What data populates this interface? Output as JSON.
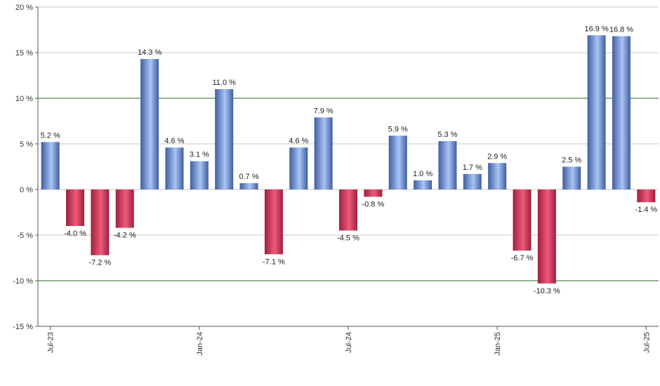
{
  "chart_data": {
    "type": "bar",
    "title": "",
    "xlabel": "",
    "ylabel": "",
    "ylim": [
      -15,
      20
    ],
    "y_ticks": [
      20,
      15,
      10,
      5,
      0,
      -5,
      -10,
      -15
    ],
    "y_tick_suffix": " %",
    "highlight_lines": [
      10,
      -10
    ],
    "grid": true,
    "x_tick_labels": [
      {
        "label": "Jul-23",
        "index": 0
      },
      {
        "label": "Jan-24",
        "index": 6
      },
      {
        "label": "Jul-24",
        "index": 12
      },
      {
        "label": "Jan-25",
        "index": 18
      },
      {
        "label": "Jul-25",
        "index": 24
      }
    ],
    "values": [
      5.2,
      -4.0,
      -7.2,
      -4.2,
      14.3,
      4.6,
      3.1,
      11.0,
      0.7,
      -7.1,
      4.6,
      7.9,
      -4.5,
      -0.8,
      5.9,
      1.0,
      5.3,
      1.7,
      2.9,
      -6.7,
      -10.3,
      2.5,
      16.9,
      16.8,
      -1.4
    ],
    "value_labels": [
      "5.2 %",
      "-4.0 %",
      "-7.2 %",
      "-4.2 %",
      "14.3 %",
      "4.6 %",
      "3.1 %",
      "11.0 %",
      "0.7 %",
      "-7.1 %",
      "4.6 %",
      "7.9 %",
      "-4.5 %",
      "-0.8 %",
      "5.9 %",
      "1.0 %",
      "5.3 %",
      "1.7 %",
      "2.9 %",
      "-6.7 %",
      "-10.3 %",
      "2.5 %",
      "16.9 %",
      "16.8 %",
      "-1.4 %"
    ],
    "colors": {
      "positive_dark": "#3f5e9e",
      "positive_light": "#a9c4f5",
      "negative_dark": "#9e1f3e",
      "negative_light": "#ef5a79",
      "gridline": "#c8c8c8",
      "highlight_line": "#1f6b1f",
      "axis": "#555555"
    }
  }
}
